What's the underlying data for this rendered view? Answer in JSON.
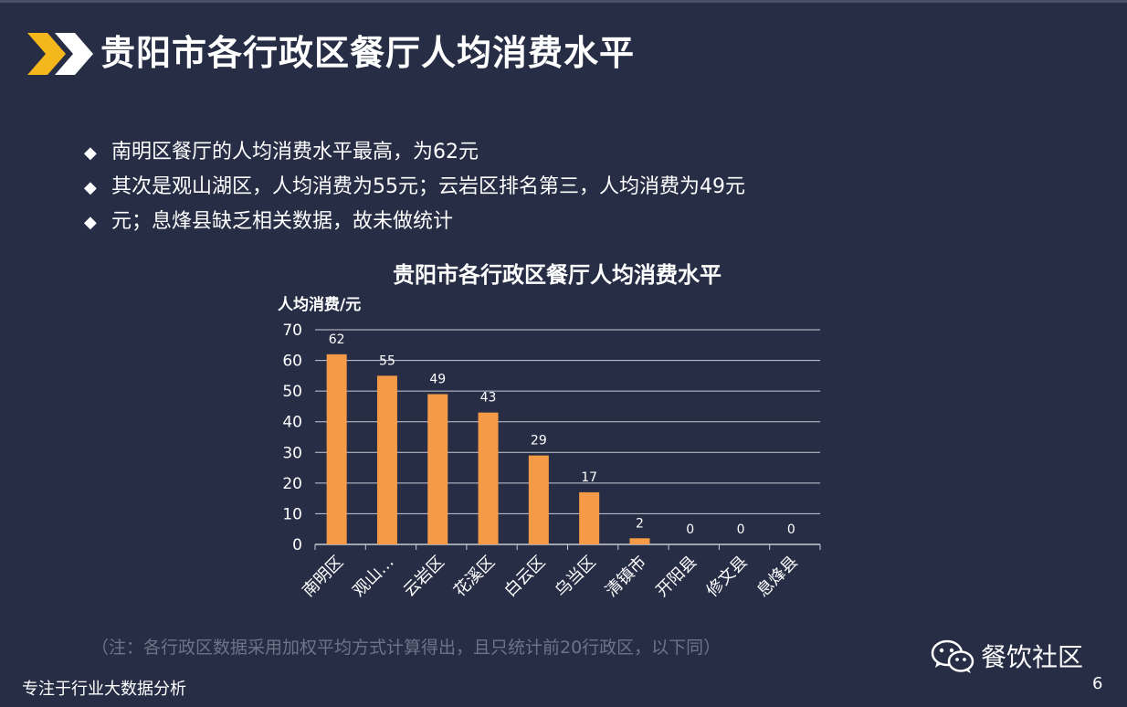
{
  "header": {
    "title": "贵阳市各行政区餐厅人均消费水平"
  },
  "bullets": [
    "南明区餐厅的人均消费水平最高，为62元",
    "其次是观山湖区，人均消费为55元；云岩区排名第三，人均消费为49元",
    "元；息烽县缺乏相关数据，故未做统计"
  ],
  "bullet_symbol": "◆",
  "chart_data": {
    "type": "bar",
    "title": "贵阳市各行政区餐厅人均消费水平",
    "ylabel": "人均消费/元",
    "xlabel": "",
    "categories": [
      "南明区",
      "观山…",
      "云岩区",
      "花溪区",
      "白云区",
      "乌当区",
      "清镇市",
      "开阳县",
      "修文县",
      "息烽县"
    ],
    "values": [
      62,
      55,
      49,
      43,
      29,
      17,
      2,
      0,
      0,
      0
    ],
    "ylim": [
      0,
      70
    ],
    "yticks": [
      0,
      10,
      20,
      30,
      40,
      50,
      60,
      70
    ],
    "grid": true,
    "bar_color": "#f59a46",
    "data_labels": true
  },
  "footnote": "（注：各行政区数据采用加权平均方式计算得出，且只统计前20行政区，以下同）",
  "footer": {
    "tagline": "专注于行业大数据分析",
    "brand": "餐饮社区",
    "page_number": "6"
  },
  "colors": {
    "background": "#262d45",
    "accent_yellow": "#f5b81c",
    "bar": "#f59a46",
    "grid": "#c9ccd6",
    "footnote": "#6e7488"
  }
}
